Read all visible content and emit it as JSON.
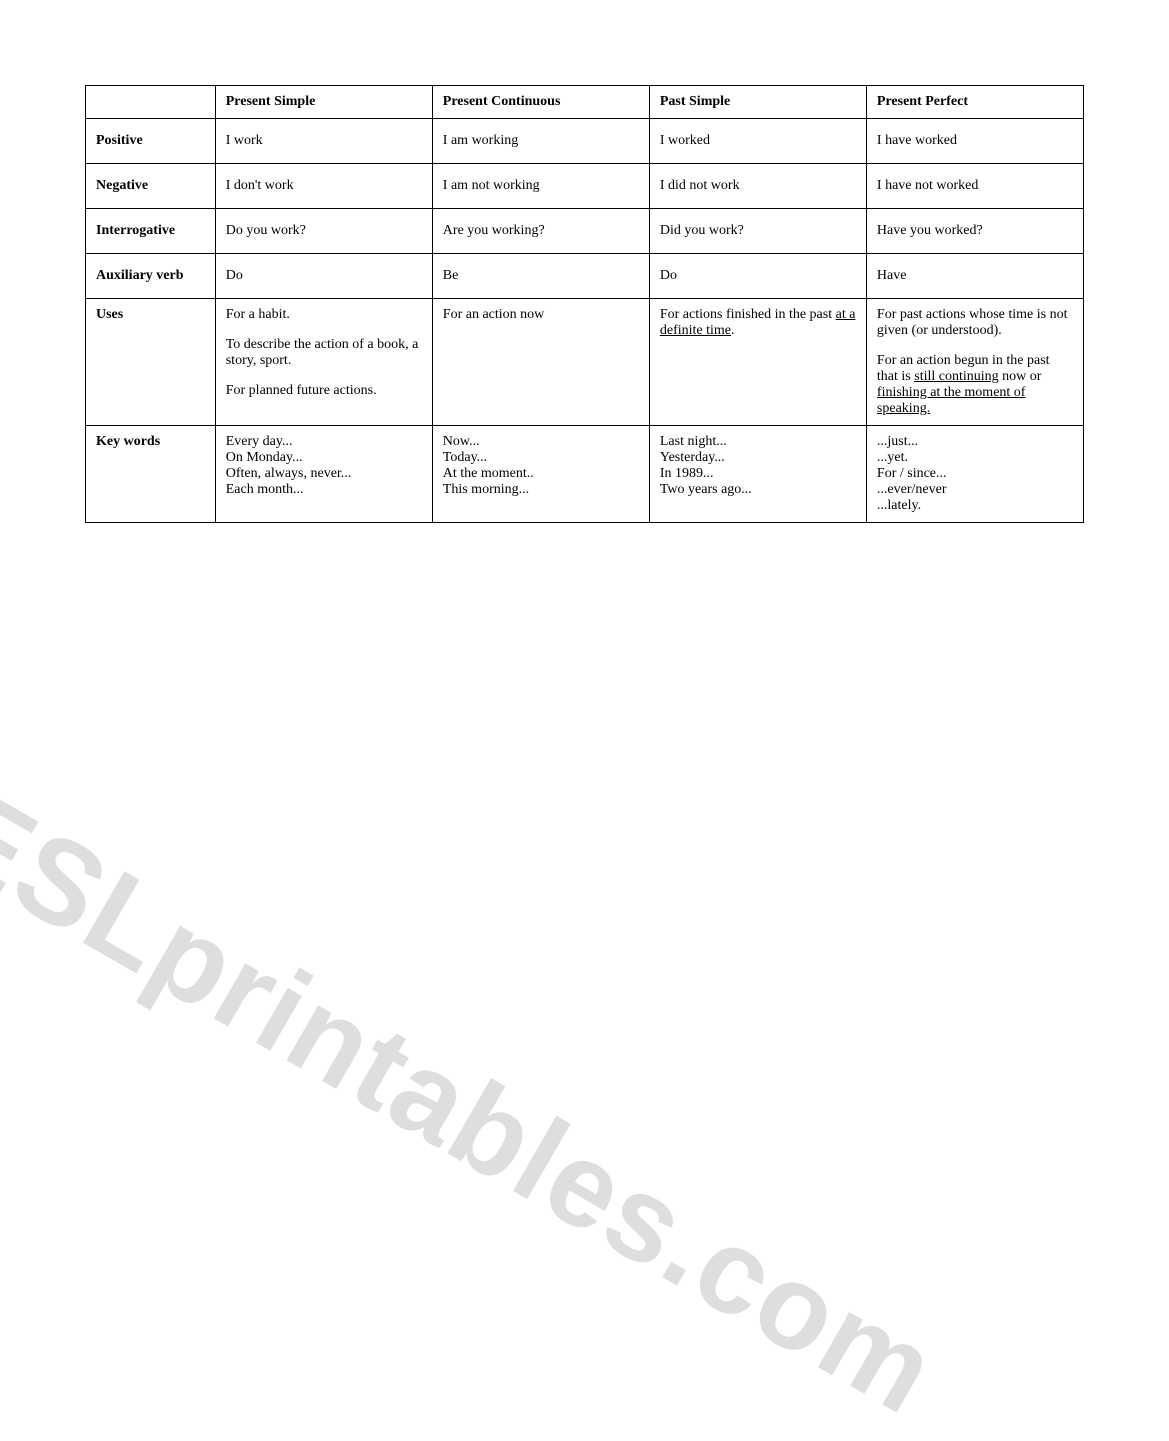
{
  "watermark": "ESLprintables.com",
  "headers": {
    "col1": "Present Simple",
    "col2": "Present Continuous",
    "col3": "Past Simple",
    "col4": "Present Perfect"
  },
  "rows": {
    "positive": {
      "label": "Positive",
      "col1": "I work",
      "col2": "I am working",
      "col3": "I worked",
      "col4": "I have worked"
    },
    "negative": {
      "label": "Negative",
      "col1": "I don't work",
      "col2": "I am not working",
      "col3": "I did not work",
      "col4": "I have not worked"
    },
    "interrogative": {
      "label": "Interrogative",
      "col1": "Do you work?",
      "col2": "Are you working?",
      "col3": "Did you work?",
      "col4": "Have you worked?"
    },
    "auxiliary": {
      "label": "Auxiliary verb",
      "col1": "Do",
      "col2": "Be",
      "col3": "Do",
      "col4": "Have"
    },
    "uses": {
      "label": "Uses",
      "col1_p1": "For a habit.",
      "col1_p2": "To describe the action of a book, a story, sport.",
      "col1_p3": "For planned future actions.",
      "col2_p1": "For an action now",
      "col3_pre": "For actions finished in the past ",
      "col3_u": "at a definite time",
      "col3_post": ".",
      "col4_p1": "For past actions whose time is not given (or understood).",
      "col4_p2_pre": "For an action begun in the past that is ",
      "col4_p2_u1": "still continuing",
      "col4_p2_mid": " now or ",
      "col4_p2_u2": "finishing at the moment of speaking.",
      "col4_p2_post": ""
    },
    "keywords": {
      "label": "Key words",
      "col1": [
        "Every day...",
        "On Monday...",
        "Often, always, never...",
        "Each month..."
      ],
      "col2": [
        "Now...",
        "Today...",
        "At the moment..",
        "This morning..."
      ],
      "col3": [
        "Last night...",
        "Yesterday...",
        "In 1989...",
        "Two years ago..."
      ],
      "col4": [
        "...just...",
        "...yet.",
        "For / since...",
        "...ever/never",
        "...lately."
      ]
    }
  }
}
